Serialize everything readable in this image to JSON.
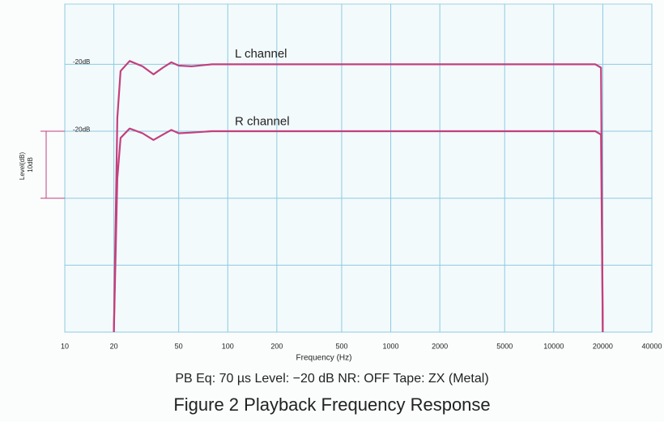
{
  "chart_data": {
    "type": "line",
    "x_label": "Frequency (Hz)",
    "y_label": "Level(dB)",
    "caption": "PB Eq: 70 µs  Level: −20 dB  NR: OFF  Tape: ZX (Metal)",
    "title": "Figure 2  Playback Frequency Response",
    "xscale": "log",
    "xlim": [
      10,
      40000
    ],
    "xticks": [
      10,
      20,
      50,
      100,
      200,
      500,
      1000,
      2000,
      5000,
      10000,
      20000,
      40000
    ],
    "ylim": [
      -40,
      9
    ],
    "ygrid": [
      -40,
      -30,
      -20,
      -10,
      0
    ],
    "grid": true,
    "level_bracket": {
      "label": "10dB",
      "from": -10,
      "to": -20
    },
    "x": [
      20,
      21,
      22,
      25,
      30,
      35,
      40,
      45,
      50,
      60,
      80,
      100,
      1000,
      10000,
      18000,
      19500,
      20000
    ],
    "series": [
      {
        "name": "L channel",
        "level_label": "-20dB",
        "color": "#c2407e",
        "values": [
          -40,
          -8,
          -1,
          0.5,
          -0.3,
          -1.5,
          -0.5,
          0.3,
          -0.2,
          -0.3,
          0,
          0,
          0,
          0,
          0,
          -0.5,
          -40
        ]
      },
      {
        "name": "R channel",
        "level_label": "-20dB",
        "color": "#c2407e",
        "values": [
          -40,
          -17,
          -11,
          -9.6,
          -10.3,
          -11.3,
          -10.5,
          -9.8,
          -10.3,
          -10.2,
          -10,
          -10,
          -10,
          -10,
          -10,
          -10.5,
          -40
        ]
      }
    ]
  }
}
